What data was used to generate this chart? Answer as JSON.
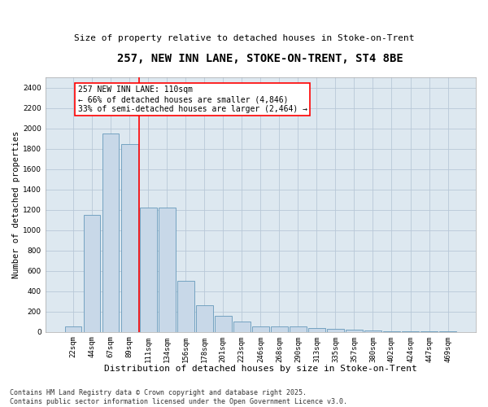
{
  "title": "257, NEW INN LANE, STOKE-ON-TRENT, ST4 8BE",
  "subtitle": "Size of property relative to detached houses in Stoke-on-Trent",
  "xlabel": "Distribution of detached houses by size in Stoke-on-Trent",
  "ylabel": "Number of detached properties",
  "categories": [
    "22sqm",
    "44sqm",
    "67sqm",
    "89sqm",
    "111sqm",
    "134sqm",
    "156sqm",
    "178sqm",
    "201sqm",
    "223sqm",
    "246sqm",
    "268sqm",
    "290sqm",
    "313sqm",
    "335sqm",
    "357sqm",
    "380sqm",
    "402sqm",
    "424sqm",
    "447sqm",
    "469sqm"
  ],
  "values": [
    50,
    1150,
    1950,
    1850,
    1220,
    1220,
    500,
    260,
    160,
    100,
    55,
    55,
    50,
    35,
    30,
    20,
    10,
    5,
    3,
    2,
    1
  ],
  "bar_color": "#c8d8e8",
  "bar_edge_color": "#6699bb",
  "vline_color": "red",
  "annotation_text": "257 NEW INN LANE: 110sqm\n← 66% of detached houses are smaller (4,846)\n33% of semi-detached houses are larger (2,464) →",
  "annotation_box_color": "white",
  "annotation_box_edge_color": "red",
  "ylim": [
    0,
    2500
  ],
  "yticks": [
    0,
    200,
    400,
    600,
    800,
    1000,
    1200,
    1400,
    1600,
    1800,
    2000,
    2200,
    2400
  ],
  "grid_color": "#b8c8d8",
  "background_color": "#dde8f0",
  "footer": "Contains HM Land Registry data © Crown copyright and database right 2025.\nContains public sector information licensed under the Open Government Licence v3.0.",
  "title_fontsize": 10,
  "subtitle_fontsize": 8,
  "xlabel_fontsize": 8,
  "ylabel_fontsize": 7.5,
  "tick_fontsize": 6.5,
  "annotation_fontsize": 7,
  "footer_fontsize": 6
}
